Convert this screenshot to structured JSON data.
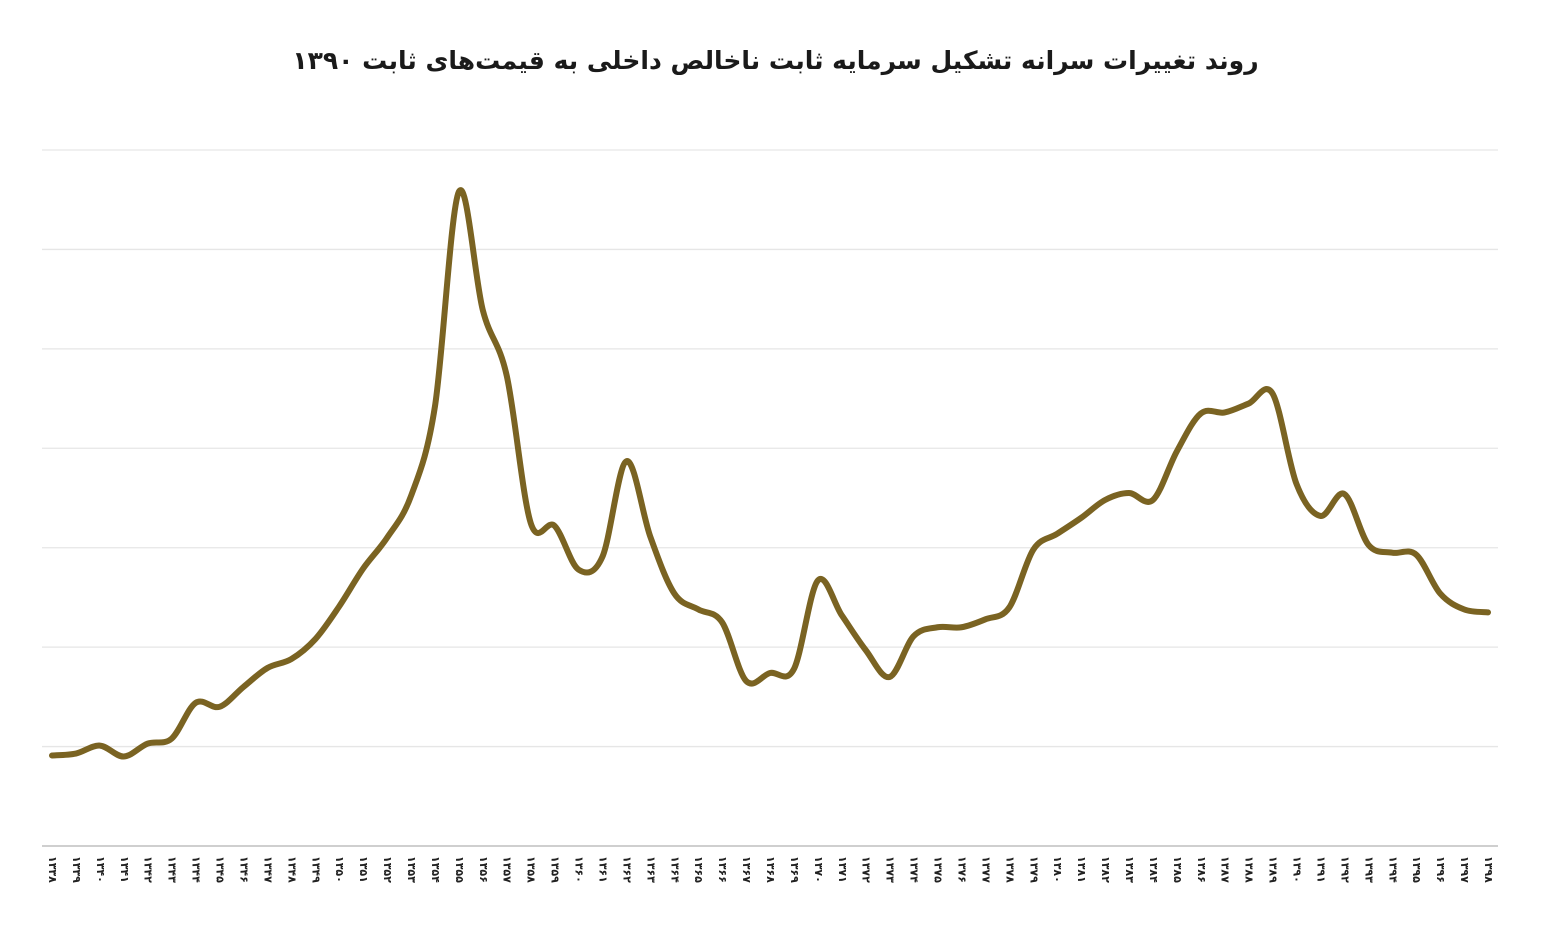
{
  "chart_data": {
    "type": "line",
    "title": "روند تغییرات سرانه تشکیل سرمایه ثابت ناخالص داخلی به قیمت‌های ثابت ۱۳۹۰",
    "xlabel": "",
    "ylabel": "",
    "ylim": [
      0,
      7
    ],
    "grid": true,
    "line_color": "#7a6322",
    "x": [
      "۱۳۳۸",
      "۱۳۳۹",
      "۱۳۴۰",
      "۱۳۴۱",
      "۱۳۴۲",
      "۱۳۴۳",
      "۱۳۴۴",
      "۱۳۴۵",
      "۱۳۴۶",
      "۱۳۴۷",
      "۱۳۴۸",
      "۱۳۴۹",
      "۱۳۵۰",
      "۱۳۵۱",
      "۱۳۵۲",
      "۱۳۵۳",
      "۱۳۵۴",
      "۱۳۵۵",
      "۱۳۵۶",
      "۱۳۵۷",
      "۱۳۵۸",
      "۱۳۵۹",
      "۱۳۶۰",
      "۱۳۶۱",
      "۱۳۶۲",
      "۱۳۶۳",
      "۱۳۶۴",
      "۱۳۶۵",
      "۱۳۶۶",
      "۱۳۶۷",
      "۱۳۶۸",
      "۱۳۶۹",
      "۱۳۷۰",
      "۱۳۷۱",
      "۱۳۷۲",
      "۱۳۷۳",
      "۱۳۷۴",
      "۱۳۷۵",
      "۱۳۷۶",
      "۱۳۷۷",
      "۱۳۷۸",
      "۱۳۷۹",
      "۱۳۸۰",
      "۱۳۸۱",
      "۱۳۸۲",
      "۱۳۸۳",
      "۱۳۸۴",
      "۱۳۸۵",
      "۱۳۸۶",
      "۱۳۸۷",
      "۱۳۸۸",
      "۱۳۸۹",
      "۱۳۹۰",
      "۱۳۹۱",
      "۱۳۹۲",
      "۱۳۹۳",
      "۱۳۹۴",
      "۱۳۹۵",
      "۱۳۹۶",
      "۱۳۹۷",
      "۱۳۹۸"
    ],
    "series": [
      {
        "values": [
          0.91,
          0.93,
          1.01,
          0.9,
          1.03,
          1.08,
          1.44,
          1.4,
          1.6,
          1.79,
          1.88,
          2.08,
          2.41,
          2.79,
          3.1,
          3.52,
          4.42,
          6.58,
          5.39,
          4.73,
          3.25,
          3.22,
          2.78,
          2.91,
          3.87,
          3.11,
          2.54,
          2.38,
          2.25,
          1.66,
          1.74,
          1.78,
          2.67,
          2.32,
          1.97,
          1.7,
          2.11,
          2.2,
          2.2,
          2.28,
          2.4,
          2.98,
          3.14,
          3.3,
          3.48,
          3.55,
          3.48,
          3.97,
          4.35,
          4.36,
          4.45,
          4.55,
          3.64,
          3.32,
          3.54,
          3.03,
          2.95,
          2.93,
          2.54,
          2.38,
          2.35
        ]
      }
    ]
  }
}
